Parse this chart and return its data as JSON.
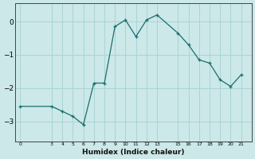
{
  "xlabel": "Humidex (Indice chaleur)",
  "background_color": "#cce8e8",
  "line_color": "#1a6e6e",
  "grid_color": "#aad4d4",
  "curve_x": [
    0,
    3,
    4,
    5,
    6,
    7,
    8,
    9,
    10,
    11,
    12,
    13,
    15,
    16,
    17,
    18,
    19,
    20,
    21
  ],
  "curve_y": [
    -2.55,
    -2.55,
    -2.7,
    -2.85,
    -3.1,
    -1.85,
    -1.85,
    -0.15,
    0.05,
    -0.45,
    0.05,
    0.2,
    -0.35,
    -0.7,
    -1.15,
    -1.25,
    -1.75,
    -1.95,
    -1.6
  ],
  "xticks": [
    0,
    3,
    4,
    5,
    6,
    7,
    8,
    9,
    10,
    11,
    12,
    13,
    15,
    16,
    17,
    18,
    19,
    20,
    21
  ],
  "ytick_vals": [
    0,
    -1,
    -2,
    -3
  ],
  "ytick_labels": [
    "0",
    "−1",
    "−2",
    "−3"
  ],
  "xlim": [
    -0.5,
    22
  ],
  "ylim": [
    -3.6,
    0.55
  ]
}
